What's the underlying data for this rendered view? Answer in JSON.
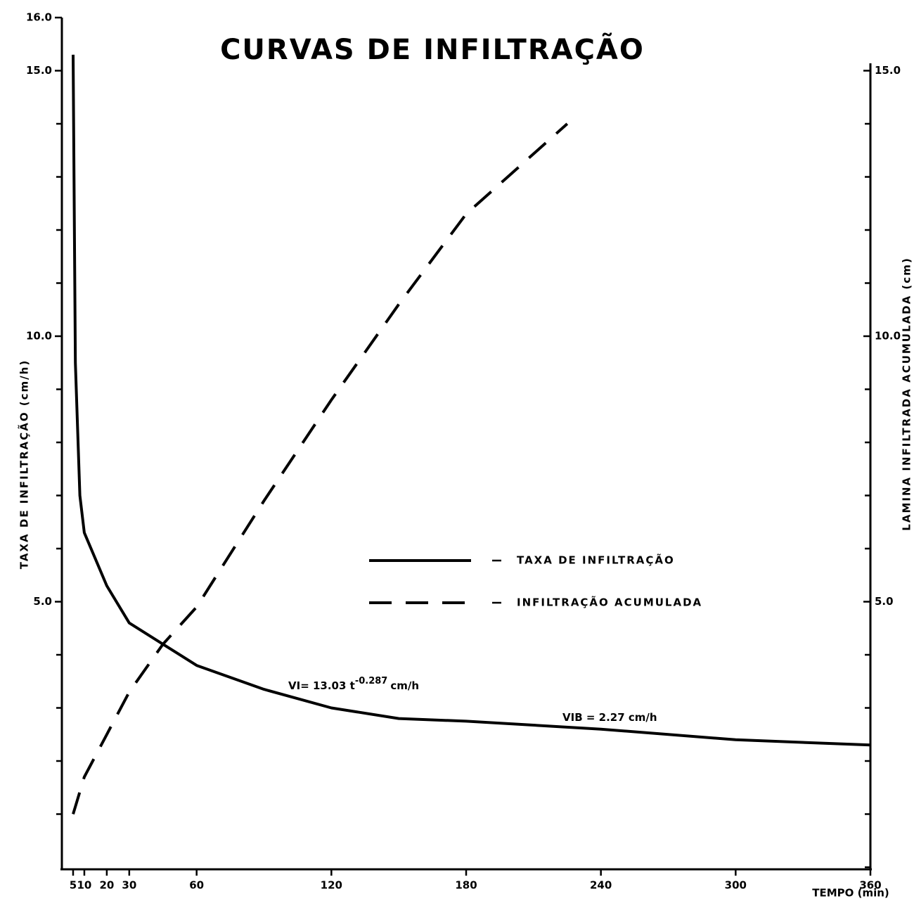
{
  "chart_data": {
    "type": "line",
    "title": "CURVAS DE INFILTRAÇÃO",
    "xlabel": "TEMPO (min)",
    "ylabel": "TAXA DE INFILTRAÇÃO (cm/h)",
    "y2label": "LAMINA INFILTRADA ACUMULADA (cm)",
    "xlim": [
      0,
      360
    ],
    "xticks": [
      5,
      10,
      20,
      30,
      60,
      120,
      180,
      240,
      300,
      360
    ],
    "ylim": [
      0,
      16
    ],
    "yticks": [
      {
        "value": 16,
        "label": "16.0"
      },
      {
        "value": 15,
        "label": "15.0"
      },
      {
        "value": 10,
        "label": "10.0"
      },
      {
        "value": 5,
        "label": "5.0"
      }
    ],
    "yminor_ticks": [
      1,
      2,
      3,
      4,
      6,
      7,
      8,
      9,
      11,
      12,
      13,
      14
    ],
    "y2lim": [
      0,
      16
    ],
    "y2ticks": [
      {
        "value": 15,
        "label": "15.0"
      },
      {
        "value": 10,
        "label": "10.0"
      },
      {
        "value": 5,
        "label": "5.0"
      }
    ],
    "y2minor_ticks": [
      0,
      1,
      2,
      3,
      4,
      6,
      7,
      8,
      9,
      11,
      12,
      13,
      14
    ],
    "grid": false,
    "legend_position": "center-right",
    "series": [
      {
        "name": "TAXA DE INFILTRAÇÃO",
        "color": "#000000",
        "style": "solid",
        "x": [
          5,
          6,
          8,
          10,
          20,
          30,
          45,
          60,
          90,
          120,
          150,
          180,
          240,
          300,
          360
        ],
        "values": [
          15.3,
          9.5,
          7.0,
          6.3,
          5.3,
          4.6,
          4.2,
          3.8,
          3.35,
          3.0,
          2.8,
          2.75,
          2.6,
          2.4,
          2.3
        ]
      },
      {
        "name": "INFILTRAÇÃO ACUMULADA",
        "color": "#000000",
        "style": "dashed",
        "axis": "y2",
        "x": [
          5,
          10,
          20,
          30,
          45,
          60,
          90,
          120,
          150,
          180,
          225
        ],
        "values": [
          1.0,
          1.7,
          2.5,
          3.3,
          4.2,
          4.9,
          6.9,
          8.8,
          10.6,
          12.3,
          14.0
        ]
      }
    ],
    "annotations": [
      {
        "text": "VI= 13.03 t",
        "superscript": "-0.287",
        "suffix": "cm/h"
      },
      {
        "text": "VIB = 2.27 cm/h"
      }
    ]
  }
}
